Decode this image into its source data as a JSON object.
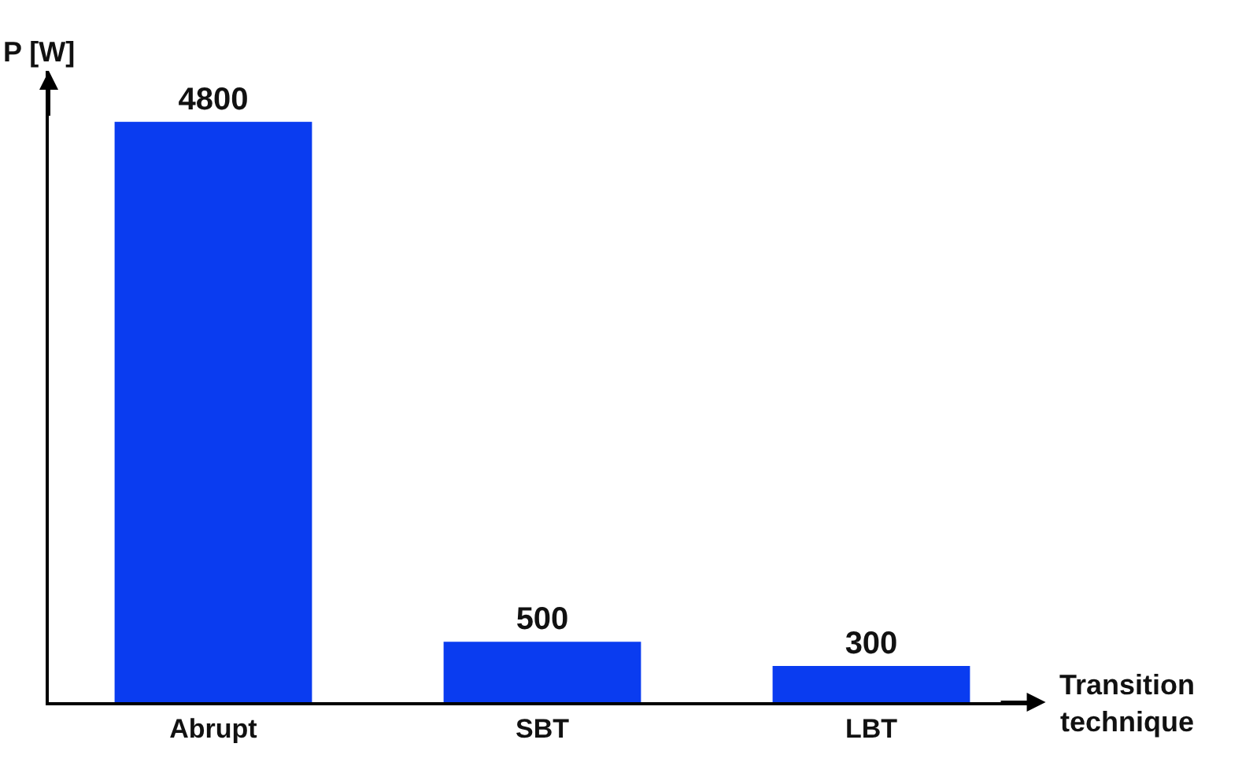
{
  "chart_data": {
    "type": "bar",
    "xlabel": "Transition technique",
    "ylabel": "P [W]",
    "categories": [
      "Abrupt",
      "SBT",
      "LBT"
    ],
    "values": [
      4800,
      500,
      300
    ],
    "color": "#0a3cf0",
    "data_labels": true
  }
}
